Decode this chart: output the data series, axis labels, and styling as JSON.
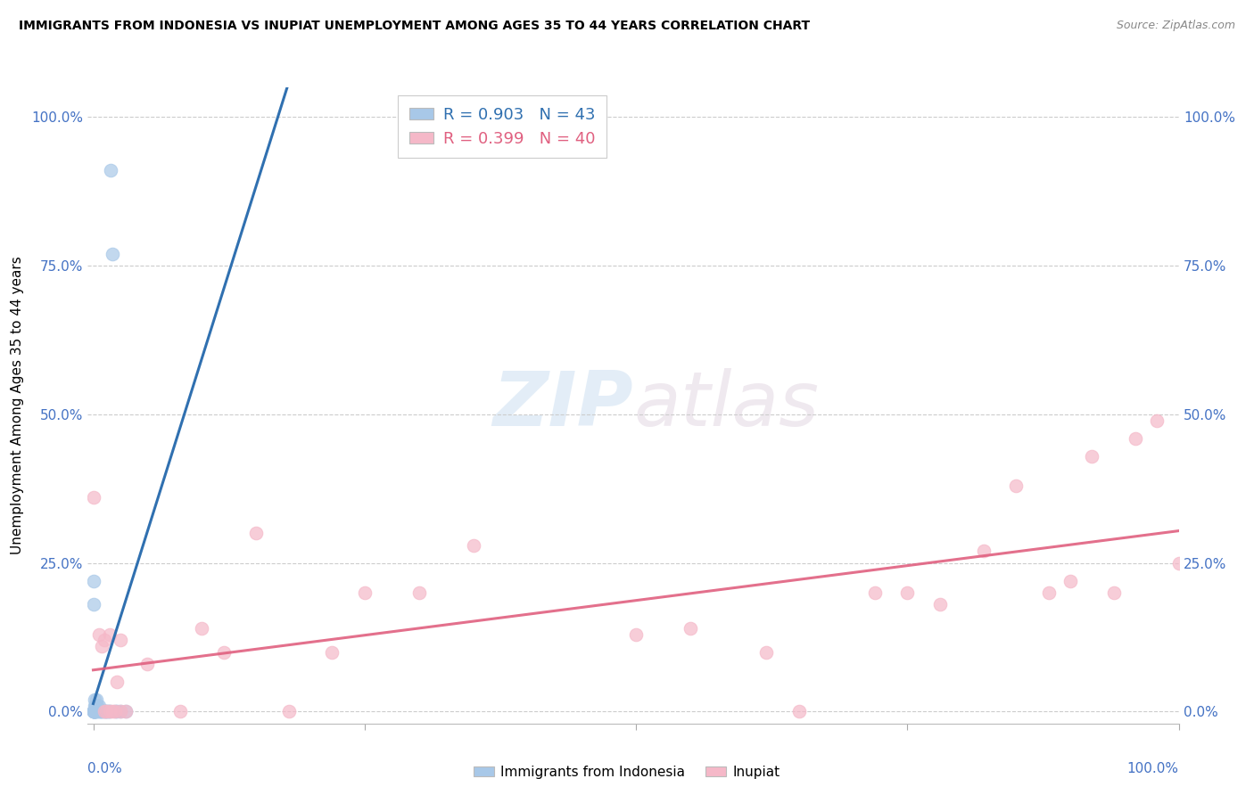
{
  "title": "IMMIGRANTS FROM INDONESIA VS INUPIAT UNEMPLOYMENT AMONG AGES 35 TO 44 YEARS CORRELATION CHART",
  "source": "Source: ZipAtlas.com",
  "ylabel": "Unemployment Among Ages 35 to 44 years",
  "ytick_labels": [
    "0.0%",
    "25.0%",
    "50.0%",
    "75.0%",
    "100.0%"
  ],
  "ytick_values": [
    0.0,
    0.25,
    0.5,
    0.75,
    1.0
  ],
  "legend_label1": "Immigrants from Indonesia",
  "legend_label2": "Inupiat",
  "R1": 0.903,
  "N1": 43,
  "R2": 0.399,
  "N2": 40,
  "blue_color": "#a8c8e8",
  "blue_line_color": "#3070b0",
  "pink_color": "#f5b8c8",
  "pink_line_color": "#e06080",
  "watermark_zip": "ZIP",
  "watermark_atlas": "atlas",
  "blue_scatter_x": [
    0.0,
    0.0,
    0.0,
    0.0,
    0.0,
    0.0,
    0.0,
    0.0,
    0.0,
    0.0,
    0.001,
    0.001,
    0.001,
    0.001,
    0.001,
    0.001,
    0.002,
    0.002,
    0.002,
    0.002,
    0.003,
    0.003,
    0.003,
    0.004,
    0.004,
    0.005,
    0.005,
    0.006,
    0.007,
    0.008,
    0.009,
    0.01,
    0.011,
    0.012,
    0.013,
    0.014,
    0.015,
    0.016,
    0.018,
    0.02,
    0.022,
    0.025,
    0.03
  ],
  "blue_scatter_y": [
    0.0,
    0.0,
    0.0,
    0.0,
    0.0,
    0.0,
    0.0,
    0.0,
    0.18,
    0.22,
    0.0,
    0.0,
    0.0,
    0.0,
    0.01,
    0.02,
    0.0,
    0.0,
    0.01,
    0.01,
    0.0,
    0.01,
    0.02,
    0.0,
    0.01,
    0.0,
    0.01,
    0.0,
    0.0,
    0.0,
    0.0,
    0.0,
    0.0,
    0.0,
    0.0,
    0.0,
    0.0,
    0.91,
    0.77,
    0.0,
    0.0,
    0.0,
    0.0
  ],
  "pink_scatter_x": [
    0.0,
    0.005,
    0.008,
    0.01,
    0.01,
    0.012,
    0.015,
    0.015,
    0.018,
    0.02,
    0.022,
    0.025,
    0.025,
    0.03,
    0.05,
    0.08,
    0.1,
    0.12,
    0.15,
    0.18,
    0.22,
    0.25,
    0.3,
    0.35,
    0.5,
    0.55,
    0.62,
    0.65,
    0.72,
    0.75,
    0.78,
    0.82,
    0.85,
    0.88,
    0.9,
    0.92,
    0.94,
    0.96,
    0.98,
    1.0
  ],
  "pink_scatter_y": [
    0.36,
    0.13,
    0.11,
    0.0,
    0.12,
    0.0,
    0.0,
    0.13,
    0.0,
    0.0,
    0.05,
    0.0,
    0.12,
    0.0,
    0.08,
    0.0,
    0.14,
    0.1,
    0.3,
    0.0,
    0.1,
    0.2,
    0.2,
    0.28,
    0.13,
    0.14,
    0.1,
    0.0,
    0.2,
    0.2,
    0.18,
    0.27,
    0.38,
    0.2,
    0.22,
    0.43,
    0.2,
    0.46,
    0.49,
    0.25
  ],
  "background_color": "#ffffff",
  "grid_color": "#cccccc",
  "xlim": [
    -0.005,
    1.0
  ],
  "ylim": [
    -0.02,
    1.05
  ]
}
